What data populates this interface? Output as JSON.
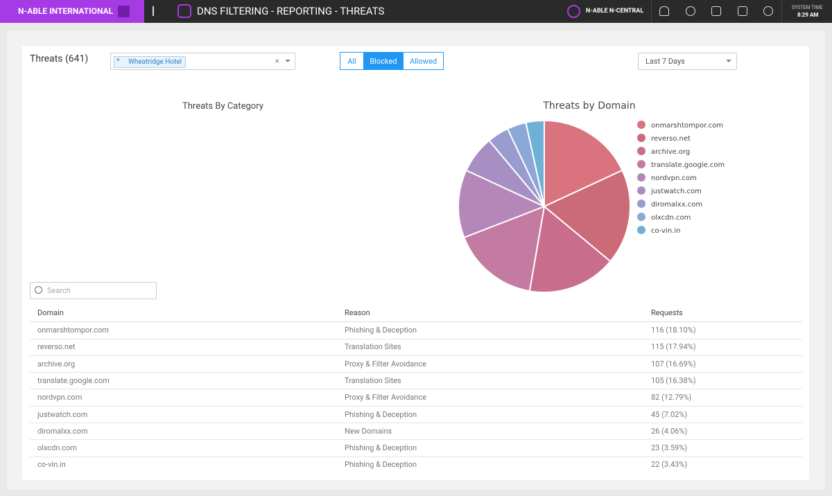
{
  "header": {
    "brand": "N-ABLE INTERNATIONAL",
    "title": "DNS FILTERING - REPORTING - THREATS",
    "product": "N-ABLE N-CENTRAL",
    "system_time_label": "SYSTEM TIME",
    "system_time": "8:29 AM"
  },
  "controls": {
    "threats_count": "Threats (641)",
    "site_filter": "Wheatridge Hotel",
    "segments": [
      "All",
      "Blocked",
      "Allowed"
    ],
    "selected_segment": 1,
    "range": "Last 7 Days",
    "search_placeholder": "Search"
  },
  "category_chart": {
    "title": "Threats By Category"
  },
  "chart_data": {
    "type": "pie",
    "title": "Threats by Domain",
    "categories": [
      "onmarshtompor.com",
      "reverso.net",
      "archive.org",
      "translate.google.com",
      "nordvpn.com",
      "justwatch.com",
      "diromalxx.com",
      "olxcdn.com",
      "co-vin.in"
    ],
    "values": [
      116,
      115,
      107,
      105,
      82,
      45,
      26,
      23,
      22
    ],
    "colors": [
      "#d9747f",
      "#cc6b78",
      "#c86e8c",
      "#c47ba1",
      "#b587b8",
      "#a78fc4",
      "#999ccf",
      "#8ba8d7",
      "#6fb0d6"
    ]
  },
  "table": {
    "headers": [
      "Domain",
      "Reason",
      "Requests"
    ],
    "rows": [
      [
        "onmarshtompor.com",
        "Phishing & Deception",
        "116 (18.10%)"
      ],
      [
        "reverso.net",
        "Translation Sites",
        "115 (17.94%)"
      ],
      [
        "archive.org",
        "Proxy & Filter Avoidance",
        "107 (16.69%)"
      ],
      [
        "translate.google.com",
        "Translation Sites",
        "105 (16.38%)"
      ],
      [
        "nordvpn.com",
        "Proxy & Filter Avoidance",
        "82 (12.79%)"
      ],
      [
        "justwatch.com",
        "Phishing & Deception",
        "45 (7.02%)"
      ],
      [
        "diromalxx.com",
        "New Domains",
        "26 (4.06%)"
      ],
      [
        "olxcdn.com",
        "Phishing & Deception",
        "23 (3.59%)"
      ],
      [
        "co-vin.in",
        "Phishing & Deception",
        "22 (3.43%)"
      ]
    ]
  }
}
